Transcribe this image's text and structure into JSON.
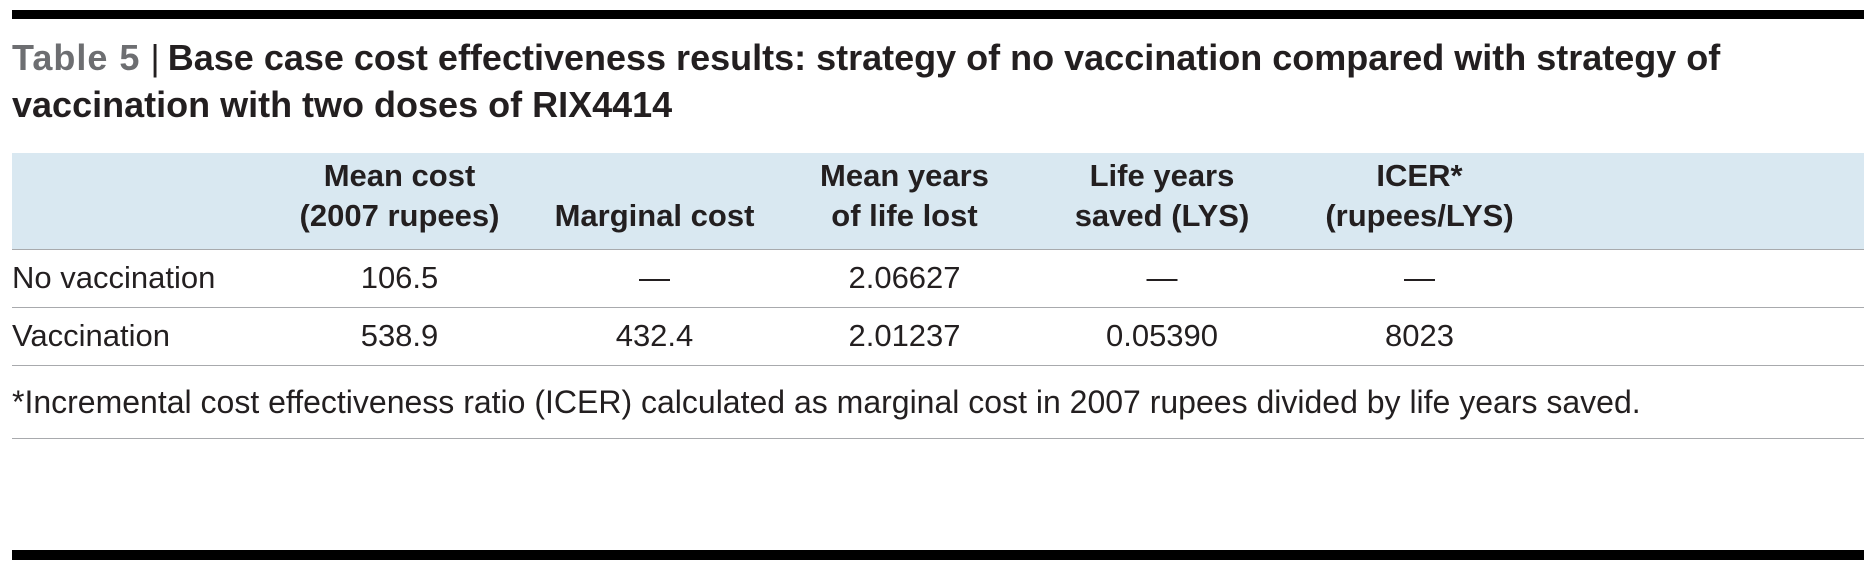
{
  "header": {
    "table_label": "Table 5",
    "separator": "|",
    "title": "Base case cost effectiveness results: strategy of no vaccination compared with strategy of vaccination with two doses of RIX4414"
  },
  "table": {
    "column_headers": [
      "Mean cost\n(2007 rupees)",
      "Marginal cost",
      "Mean years\nof life lost",
      "Life years\nsaved (LYS)",
      "ICER*\n(rupees/LYS)"
    ],
    "rows": [
      {
        "label": "No vaccination",
        "values": [
          "106.5",
          "—",
          "2.06627",
          "—",
          "—"
        ]
      },
      {
        "label": "Vaccination",
        "values": [
          "538.9",
          "432.4",
          "2.01237",
          "0.05390",
          "8023"
        ]
      }
    ]
  },
  "footnote": "*Incremental cost effectiveness ratio (ICER) calculated as marginal cost in 2007 rupees divided by life years saved.",
  "colors": {
    "header_band": "#d9e8f1",
    "table_label_gray": "#6d6e71",
    "text": "#231f20",
    "row_line": "#a8aaad",
    "rule": "#000000"
  },
  "chart_data": {
    "type": "table",
    "title": "Base case cost effectiveness results: strategy of no vaccination compared with strategy of vaccination with two doses of RIX4414",
    "columns": [
      "",
      "Mean cost (2007 rupees)",
      "Marginal cost",
      "Mean years of life lost",
      "Life years saved (LYS)",
      "ICER* (rupees/LYS)"
    ],
    "rows": [
      [
        "No vaccination",
        "106.5",
        "—",
        "2.06627",
        "—",
        "—"
      ],
      [
        "Vaccination",
        "538.9",
        "432.4",
        "2.01237",
        "0.05390",
        "8023"
      ]
    ],
    "footnote": "*Incremental cost effectiveness ratio (ICER) calculated as marginal cost in 2007 rupees divided by life years saved."
  }
}
